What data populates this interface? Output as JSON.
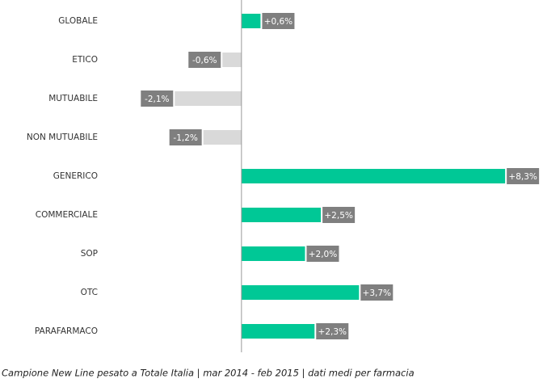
{
  "chart_data": {
    "type": "bar",
    "orientation": "horizontal",
    "categories": [
      "GLOBALE",
      "ETICO",
      "MUTUABILE",
      "NON MUTUABILE",
      "GENERICO",
      "COMMERCIALE",
      "SOP",
      "OTC",
      "PARAFARMACO"
    ],
    "values": [
      0.6,
      -0.6,
      -2.1,
      -1.2,
      8.3,
      2.5,
      2.0,
      3.7,
      2.3
    ],
    "value_labels": [
      "+0,6%",
      "-0,6%",
      "-2,1%",
      "-1,2%",
      "+8,3%",
      "+2,5%",
      "+2,0%",
      "+3,7%",
      "+2,3%"
    ],
    "positive_color": "#00c896",
    "negative_color": "#d9d9d9",
    "label_box_color": "#7f7f7f",
    "xlim": [
      -7.5,
      8.5
    ],
    "footnote": "Campione New Line pesato a Totale Italia | mar 2014 - feb 2015 | dati medi per farmacia"
  }
}
